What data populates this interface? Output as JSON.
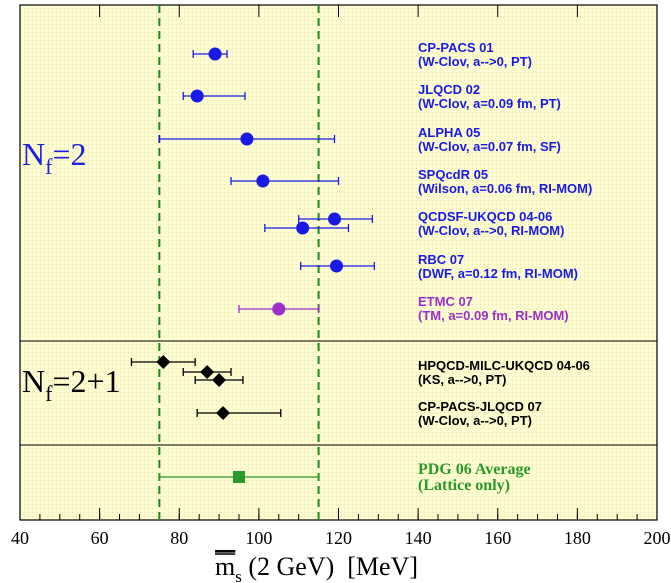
{
  "chart_data": {
    "type": "errorbar",
    "xlim": [
      40,
      200
    ],
    "xticks": [
      40,
      60,
      80,
      100,
      120,
      140,
      160,
      180,
      200
    ],
    "band": [
      75,
      115
    ],
    "band_color": "#1f8a1f",
    "xlabel": {
      "main": "m",
      "sub": "s",
      "rest": " (2 GeV)  [MeV]"
    },
    "groups": [
      {
        "label": "N",
        "sub": "f",
        "suffix": "=2",
        "color": "#2020e0"
      },
      {
        "label": "N",
        "sub": "f",
        "suffix": "=2+1",
        "color": "#000000"
      },
      {
        "label": null,
        "sub": null,
        "suffix": null,
        "color": null
      }
    ],
    "series": [
      {
        "name": "CP-PACS 01",
        "detail": "(W-Clov, a-->0, PT)",
        "color": "#1a1ae6",
        "marker": "circle",
        "group": 0,
        "points": [
          {
            "value": 89,
            "low": 83.5,
            "high": 92
          }
        ]
      },
      {
        "name": "JLQCD 02",
        "detail": "(W-Clov, a=0.09 fm, PT)",
        "color": "#1a1ae6",
        "marker": "circle",
        "group": 0,
        "points": [
          {
            "value": 84.5,
            "low": 81,
            "high": 96.5
          }
        ]
      },
      {
        "name": "ALPHA 05",
        "detail": "(W-Clov, a=0.07 fm, SF)",
        "color": "#1a1ae6",
        "marker": "circle",
        "group": 0,
        "points": [
          {
            "value": 97,
            "low": 75,
            "high": 119
          }
        ]
      },
      {
        "name": "SPQcdR 05",
        "detail": "(Wilson, a=0.06 fm, RI-MOM)",
        "color": "#1a1ae6",
        "marker": "circle",
        "group": 0,
        "points": [
          {
            "value": 101,
            "low": 93,
            "high": 120
          }
        ]
      },
      {
        "name": "QCDSF-UKQCD 04-06",
        "detail": "(W-Clov, a-->0, RI-MOM)",
        "color": "#1a1ae6",
        "marker": "circle",
        "group": 0,
        "points": [
          {
            "value": 119,
            "low": 110,
            "high": 128.5
          },
          {
            "value": 111,
            "low": 101.5,
            "high": 122.5
          }
        ]
      },
      {
        "name": "RBC 07",
        "detail": "(DWF, a=0.12 fm, RI-MOM)",
        "color": "#1a1ae6",
        "marker": "circle",
        "group": 0,
        "points": [
          {
            "value": 119.5,
            "low": 110.5,
            "high": 129
          }
        ]
      },
      {
        "name": "ETMC 07",
        "detail": "(TM, a=0.09 fm, RI-MOM)",
        "color": "#9b2fc9",
        "marker": "circle",
        "group": 0,
        "points": [
          {
            "value": 105,
            "low": 95,
            "high": 115
          }
        ]
      },
      {
        "name": "HPQCD-MILC-UKQCD 04-06",
        "detail": "(KS, a-->0, PT)",
        "color": "#000000",
        "marker": "diamond",
        "group": 1,
        "points": [
          {
            "value": 76,
            "low": 68,
            "high": 84
          },
          {
            "value": 87,
            "low": 81,
            "high": 93
          },
          {
            "value": 90,
            "low": 84,
            "high": 96
          }
        ]
      },
      {
        "name": "CP-PACS-JLQCD 07",
        "detail": "(W-Clov, a-->0, PT)",
        "color": "#000000",
        "marker": "diamond",
        "group": 1,
        "points": [
          {
            "value": 91,
            "low": 84.5,
            "high": 105.5
          }
        ]
      },
      {
        "name": "PDG 06 Average",
        "detail": "(Lattice only)",
        "color": "#2a9a2a",
        "marker": "square",
        "group": 2,
        "points": [
          {
            "value": 95,
            "low": 75,
            "high": 115
          }
        ]
      }
    ]
  }
}
